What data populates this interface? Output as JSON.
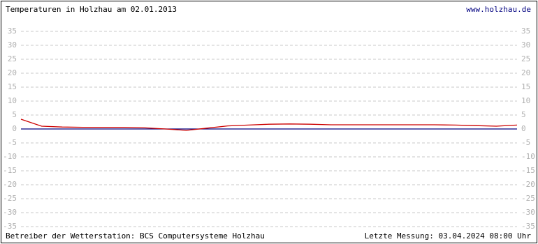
{
  "chart_data": {
    "type": "line",
    "title": "Temperaturen in Holzhau am 02.01.2013",
    "link": "www.holzhau.de",
    "footer_left": "Betreiber der Wetterstation: BCS Computersysteme Holzhau",
    "footer_right": "Letzte Messung: 03.04.2024 08:00 Uhr",
    "categories": [
      null,
      null,
      null,
      null,
      null,
      null,
      null,
      null,
      null,
      null,
      null,
      null,
      null,
      null,
      null,
      null,
      null,
      null,
      null,
      null,
      null,
      null,
      null,
      null,
      null
    ],
    "series": [
      {
        "color": "#cc0000",
        "values": [
          3.5,
          1.0,
          0.7,
          0.6,
          0.6,
          0.6,
          0.4,
          0.0,
          -0.5,
          0.3,
          1.1,
          1.4,
          1.7,
          1.8,
          1.7,
          1.5,
          1.5,
          1.5,
          1.5,
          1.5,
          1.5,
          1.4,
          1.2,
          1.0,
          1.4
        ]
      }
    ],
    "zero_line_color": "#000080",
    "ylim": [
      -35,
      35
    ],
    "yticks": [
      35,
      30,
      25,
      20,
      15,
      10,
      5,
      0,
      -5,
      -10,
      -15,
      -20,
      -25,
      -30,
      -35
    ],
    "grid": true
  }
}
